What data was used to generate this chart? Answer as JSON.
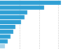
{
  "values": [
    23.5,
    17.0,
    10.5,
    9.5,
    8.0,
    6.0,
    5.0,
    4.0,
    3.0,
    1.8
  ],
  "bar_color": "#2e9fd4",
  "last_bar_color": "#a8d4ea",
  "background_color": "#ffffff",
  "grid_color": "#cccccc",
  "n_bars": 10,
  "grid_lines": [
    7.5,
    15.0,
    22.5
  ],
  "xlim": [
    0,
    27
  ]
}
